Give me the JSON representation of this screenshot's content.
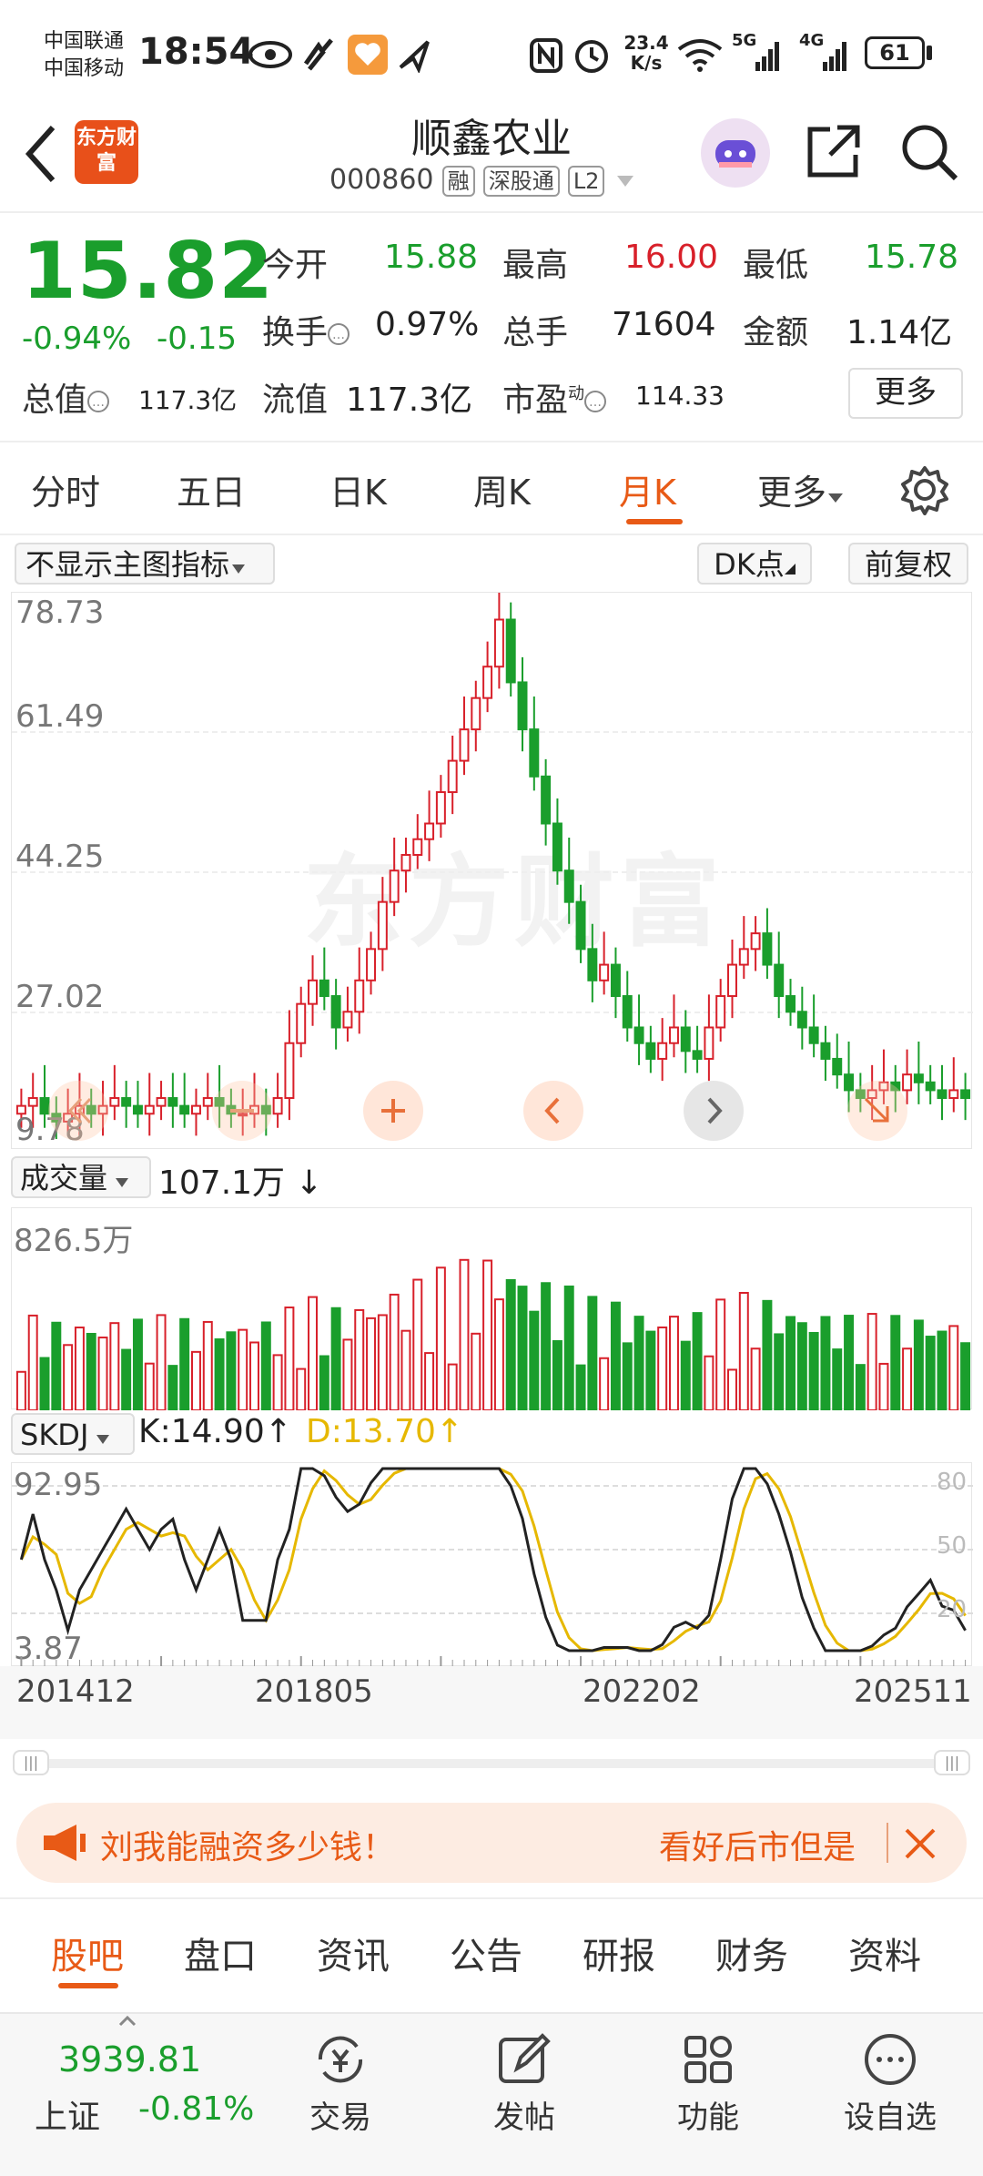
{
  "status_bar": {
    "carrier1": "中国联通",
    "carrier2": "中国移动",
    "time": "18:54",
    "net_speed": "23.4",
    "net_unit": "K/s",
    "sim1": "5G",
    "sim2": "4G",
    "battery": "61"
  },
  "header": {
    "logo_text": "东方财富",
    "stock_name": "顺鑫农业",
    "stock_code": "000860",
    "tags": [
      "融",
      "深股通",
      "L2"
    ]
  },
  "quote": {
    "price": "15.82",
    "change_pct": "-0.94%",
    "change": "-0.15",
    "open_label": "今开",
    "open": "15.88",
    "high_label": "最高",
    "high": "16.00",
    "low_label": "最低",
    "low": "15.78",
    "turnover_label": "换手",
    "turnover": "0.97%",
    "volume_label": "总手",
    "volume": "71604",
    "amount_label": "金额",
    "amount": "1.14亿",
    "mktcap_label": "总值",
    "mktcap": "117.3亿",
    "float_label": "流值",
    "float": "117.3亿",
    "pe_label": "市盈",
    "pe_sup": "动",
    "pe": "114.33",
    "more_label": "更多"
  },
  "period_tabs": [
    {
      "label": "分时"
    },
    {
      "label": "五日"
    },
    {
      "label": "日K"
    },
    {
      "label": "周K"
    },
    {
      "label": "月K",
      "active": true
    },
    {
      "label": "更多"
    }
  ],
  "chart_controls": {
    "indicator_select": "不显示主图指标",
    "dk_label": "DK点",
    "adjust_label": "前复权"
  },
  "price_axis": [
    "78.73",
    "61.49",
    "44.25",
    "27.02",
    "9.78"
  ],
  "watermark": "东方财富",
  "volume_panel": {
    "label": "成交量",
    "value": "107.1万",
    "arrow": "↓",
    "max_label": "826.5万"
  },
  "skdj_panel": {
    "label": "SKDJ",
    "k": "K:14.90",
    "k_arrow": "↑",
    "d": "D:13.70",
    "d_arrow": "↑",
    "top": "92.95",
    "bottom": "3.87",
    "levels": [
      "80",
      "50",
      "20"
    ]
  },
  "x_axis": [
    "201412",
    "201805",
    "202202",
    "202511"
  ],
  "news": {
    "left_text": "刘我能融资多少钱！",
    "right_text": "看好后市但是"
  },
  "bottom_tabs": [
    {
      "label": "股吧",
      "active": true
    },
    {
      "label": "盘口"
    },
    {
      "label": "资讯"
    },
    {
      "label": "公告"
    },
    {
      "label": "研报"
    },
    {
      "label": "财务"
    },
    {
      "label": "资料"
    }
  ],
  "bottom_nav": {
    "index_value": "3939.81",
    "index_name": "上证",
    "index_change": "-0.81%",
    "items": [
      {
        "label": "交易"
      },
      {
        "label": "发帖"
      },
      {
        "label": "功能"
      },
      {
        "label": "设自选"
      }
    ]
  },
  "colors": {
    "up": "#d8202a",
    "down": "#1a9e2c",
    "accent": "#e85a16",
    "k_line": "#222222",
    "d_line": "#e6b800"
  },
  "chart_data": {
    "type": "candlestick",
    "x_range": [
      "201412",
      "202511"
    ],
    "price_range": [
      9.78,
      78.73
    ],
    "monthly_close_approx": [
      14,
      15,
      13,
      12,
      13,
      14,
      13,
      14,
      15,
      14,
      13,
      14,
      15,
      14,
      13,
      14,
      15,
      14,
      13,
      13,
      14,
      13,
      15,
      22,
      27,
      30,
      28,
      24,
      26,
      30,
      34,
      40,
      44,
      46,
      48,
      50,
      54,
      58,
      62,
      66,
      70,
      76,
      68,
      62,
      56,
      50,
      44,
      40,
      34,
      30,
      32,
      28,
      24,
      22,
      20,
      22,
      24,
      21,
      20,
      24,
      28,
      32,
      34,
      36,
      32,
      28,
      26,
      24,
      22,
      20,
      18,
      16,
      15,
      16,
      17,
      16,
      18,
      17,
      16,
      15,
      16,
      15
    ]
  }
}
